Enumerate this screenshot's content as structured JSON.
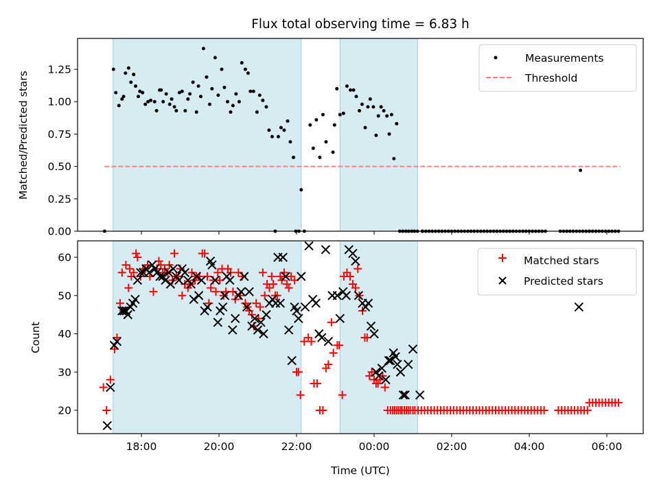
{
  "chart_data": [
    {
      "type": "scatter",
      "title": "Flux total observing time = 6.83 h",
      "xlabel": "",
      "ylabel": "Matched/Predicted stars",
      "ylim": [
        0.0,
        1.49
      ],
      "yticks": [
        "0.00",
        "0.25",
        "0.50",
        "0.75",
        "1.00",
        "1.25"
      ],
      "ytick_values": [
        0.0,
        0.25,
        0.5,
        0.75,
        1.0,
        1.25
      ],
      "x_unit": "hours relative to 18:00 UTC",
      "xlim": [
        -1.65,
        6.95
      ],
      "xticks": [
        0,
        2,
        4,
        6,
        8,
        10,
        12
      ],
      "shaded_spans": [
        [
          -0.73,
          4.12
        ],
        [
          5.12,
          7.12
        ]
      ],
      "shade_color": "#add8e6",
      "legend": {
        "position": "top-right",
        "entries": [
          "Measurements",
          "Threshold"
        ]
      },
      "threshold": {
        "name": "Threshold",
        "value": 0.5,
        "x_range": [
          -0.95,
          12.35
        ],
        "color": "#ff7f7f",
        "style": "dashed"
      },
      "series": [
        {
          "name": "Measurements",
          "marker": "dot",
          "color": "#000000",
          "x": [
            -0.95,
            -0.72,
            -0.66,
            -0.58,
            -0.5,
            -0.46,
            -0.41,
            -0.33,
            -0.27,
            -0.2,
            -0.15,
            -0.08,
            -0.04,
            0.03,
            0.1,
            0.17,
            0.24,
            0.34,
            0.39,
            0.47,
            0.51,
            0.56,
            0.64,
            0.73,
            0.78,
            0.85,
            0.9,
            0.98,
            1.05,
            1.13,
            1.2,
            1.25,
            1.33,
            1.42,
            1.47,
            1.53,
            1.6,
            1.68,
            1.76,
            1.82,
            1.9,
            1.98,
            2.07,
            2.14,
            2.22,
            2.3,
            2.36,
            2.44,
            2.52,
            2.59,
            2.68,
            2.75,
            2.81,
            2.89,
            2.98,
            3.05,
            3.13,
            3.22,
            3.29,
            3.37,
            3.45,
            3.53,
            3.6,
            3.68,
            3.77,
            3.84,
            3.92,
            3.98,
            4.06,
            4.12,
            4.2,
            4.35,
            4.43,
            4.51,
            4.6,
            4.68,
            4.76,
            4.94,
            4.98,
            5.04,
            5.12,
            5.21,
            5.3,
            5.39,
            5.47,
            5.54,
            5.62,
            5.69,
            5.77,
            5.84,
            5.9,
            5.98,
            6.05,
            6.11,
            6.18,
            6.25,
            6.33,
            6.39,
            6.45,
            6.51,
            6.58,
            6.66,
            6.74,
            6.82,
            6.89,
            6.97,
            7.04,
            7.12,
            7.24
          ],
          "y": [
            0.0,
            1.25,
            1.07,
            0.97,
            1.02,
            1.04,
            1.22,
            1.26,
            1.15,
            1.21,
            1.12,
            1.04,
            1.08,
            1.07,
            0.98,
            1.0,
            1.01,
            1.0,
            0.93,
            1.09,
            1.09,
            1.0,
            1.06,
            0.98,
            1.02,
            0.96,
            0.93,
            1.07,
            1.08,
            0.93,
            1.02,
            1.06,
            1.15,
            0.92,
            1.12,
            1.04,
            1.41,
            1.19,
            0.98,
            1.1,
            1.34,
            1.05,
            1.25,
            1.11,
            1.0,
            0.92,
            0.97,
            1.06,
            1.0,
            1.3,
            1.25,
            1.22,
            1.08,
            1.08,
            0.92,
            1.05,
            1.01,
            0.96,
            0.78,
            0.73,
            0.0,
            0.73,
            0.8,
            0.78,
            0.85,
            0.69,
            0.57,
            0.0,
            0.0,
            0.32,
            0.0,
            0.82,
            0.64,
            0.86,
            0.57,
            0.9,
            0.69,
            0.61,
            0.82,
            1.1,
            0.9,
            0.91,
            1.12,
            1.09,
            1.09,
            1.04,
            0.93,
            0.98,
            0.8,
            0.96,
            1.02,
            0.96,
            0.74,
            0.89,
            0.96,
            0.93,
            0.89,
            0.75,
            0.9,
            0.56,
            0.83,
            0.0,
            0.0,
            0.0,
            0.0,
            0.0,
            0.0,
            0.0,
            0.0
          ]
        }
      ],
      "zero_run_segments_x": [
        [
          7.25,
          10.45
        ],
        [
          10.8,
          11.55
        ],
        [
          11.55,
          12.35
        ]
      ],
      "isolated_points": [
        {
          "x": 11.32,
          "y": 0.47
        }
      ]
    },
    {
      "type": "scatter",
      "title": "",
      "xlabel": "Time (UTC)",
      "ylabel": "Count",
      "ylim": [
        13.5,
        64.3
      ],
      "yticks": [
        "20",
        "30",
        "40",
        "50",
        "60"
      ],
      "ytick_values": [
        20,
        30,
        40,
        50,
        60
      ],
      "x_unit": "hours relative to 18:00 UTC",
      "xlim": [
        -1.65,
        6.95
      ],
      "xticks": [
        0,
        2,
        4,
        6,
        8,
        10,
        12
      ],
      "xtick_labels": [
        "18:00",
        "20:00",
        "22:00",
        "00:00",
        "02:00",
        "04:00",
        "06:00"
      ],
      "shaded_spans": [
        [
          -0.73,
          4.12
        ],
        [
          5.12,
          7.12
        ]
      ],
      "shade_color": "#add8e6",
      "legend": {
        "position": "top-right",
        "entries": [
          "Matched stars",
          "Predicted stars"
        ]
      },
      "series": [
        {
          "name": "Matched stars",
          "marker": "plus",
          "color": "#ff0000",
          "x": [
            -0.98,
            -0.9,
            -0.8,
            -0.69,
            -0.63,
            -0.55,
            -0.5,
            -0.46,
            -0.4,
            -0.33,
            -0.3,
            -0.26,
            -0.2,
            -0.14,
            -0.1,
            -0.02,
            0.04,
            0.1,
            0.16,
            0.22,
            0.31,
            0.4,
            0.45,
            0.5,
            0.55,
            0.6,
            0.68,
            0.72,
            0.8,
            0.85,
            0.9,
            0.95,
            1.0,
            1.05,
            1.12,
            1.2,
            1.26,
            1.3,
            1.38,
            1.42,
            1.5,
            1.57,
            1.63,
            1.7,
            1.74,
            1.79,
            1.85,
            1.92,
            1.97,
            2.02,
            2.08,
            2.12,
            2.18,
            2.23,
            2.3,
            2.36,
            2.42,
            2.5,
            2.55,
            2.6,
            2.68,
            2.73,
            2.78,
            2.85,
            2.9,
            2.96,
            3.02,
            3.06,
            3.13,
            3.18,
            3.24,
            3.3,
            3.36,
            3.4,
            3.45,
            3.5,
            3.58,
            3.62,
            3.68,
            3.75,
            3.8,
            3.86,
            3.95,
            4.0,
            4.05,
            4.1,
            4.2,
            4.3,
            4.38,
            4.45,
            4.53,
            4.6,
            4.68,
            4.76,
            4.82,
            4.9,
            4.95,
            5.05,
            5.1,
            5.18,
            5.22,
            5.3,
            5.38,
            5.45,
            5.52,
            5.58,
            5.62,
            5.7,
            5.76,
            5.82,
            5.88,
            5.94,
            6.0,
            6.05,
            6.1,
            6.15,
            6.22,
            6.28,
            6.35,
            6.42,
            6.48,
            6.53,
            6.58,
            6.63,
            6.68,
            6.72,
            6.78,
            6.83,
            6.88,
            6.93,
            7.0
          ],
          "y": [
            26,
            20,
            28,
            36,
            39,
            48,
            56,
            46,
            58,
            52,
            57,
            55,
            56,
            61,
            60,
            55,
            57,
            57,
            58,
            55,
            51,
            57,
            59,
            58,
            56,
            57,
            56,
            58,
            54,
            61,
            55,
            55,
            57,
            50,
            53,
            52,
            53,
            56,
            54,
            55,
            55,
            61,
            61,
            55,
            48,
            52,
            54,
            51,
            56,
            54,
            57,
            50,
            51,
            57,
            56,
            51,
            49,
            56,
            50,
            55,
            48,
            47,
            46,
            45,
            42,
            48,
            44,
            47,
            56,
            50,
            53,
            52,
            55,
            53,
            50,
            50,
            55,
            54,
            56,
            53,
            52,
            55,
            54,
            30,
            30,
            24,
            38,
            39,
            38,
            27,
            27,
            20,
            20,
            31,
            32,
            43,
            35,
            37,
            37,
            24,
            55,
            56,
            55,
            53,
            52,
            57,
            50,
            46,
            39,
            39,
            29,
            30,
            28,
            27,
            27,
            28,
            29,
            26,
            20,
            20,
            20,
            20,
            20,
            20,
            20,
            20,
            20,
            20,
            20,
            20,
            20
          ]
        },
        {
          "name": "Predicted stars",
          "marker": "x",
          "color": "#000000",
          "x": [
            -0.88,
            -0.8,
            -0.7,
            -0.63,
            -0.5,
            -0.45,
            -0.4,
            -0.35,
            -0.28,
            -0.22,
            -0.16,
            -0.1,
            -0.02,
            0.05,
            0.12,
            0.2,
            0.28,
            0.35,
            0.4,
            0.48,
            0.55,
            0.62,
            0.7,
            0.75,
            0.82,
            0.9,
            0.97,
            1.05,
            1.12,
            1.2,
            1.28,
            1.35,
            1.42,
            1.48,
            1.55,
            1.63,
            1.7,
            1.78,
            1.82,
            1.9,
            1.97,
            2.03,
            2.1,
            2.15,
            2.2,
            2.28,
            2.35,
            2.42,
            2.5,
            2.57,
            2.65,
            2.72,
            2.78,
            2.85,
            2.92,
            3.0,
            3.08,
            3.15,
            3.22,
            3.3,
            3.38,
            3.46,
            3.52,
            3.58,
            3.65,
            3.72,
            3.8,
            3.88,
            3.95,
            4.0,
            4.05,
            4.12,
            4.22,
            4.32,
            4.42,
            4.5,
            4.58,
            4.65,
            4.75,
            4.82,
            4.92,
            5.05,
            5.12,
            5.2,
            5.28,
            5.35,
            5.45,
            5.52,
            5.6,
            5.7,
            5.78,
            5.85,
            5.92,
            6.0,
            6.05,
            6.12,
            6.2,
            6.3,
            6.38,
            6.42,
            6.5,
            6.55,
            6.6,
            6.68,
            6.75,
            6.8,
            6.88,
            7.0,
            7.18,
            11.28
          ],
          "y": [
            16,
            26,
            37,
            38,
            46,
            46,
            46,
            45,
            47,
            48,
            49,
            54,
            56,
            56,
            57,
            56,
            58,
            57,
            56,
            55,
            55,
            54,
            56,
            53,
            57,
            55,
            54,
            57,
            56,
            54,
            53,
            49,
            55,
            50,
            54,
            46,
            47,
            59,
            58,
            54,
            43,
            46,
            47,
            50,
            55,
            54,
            41,
            44,
            50,
            51,
            55,
            47,
            51,
            42,
            44,
            41,
            43,
            40,
            45,
            48,
            49,
            48,
            60,
            48,
            60,
            55,
            41,
            33,
            47,
            46,
            44,
            55,
            47,
            63,
            49,
            48,
            40,
            39,
            62,
            38,
            50,
            50,
            44,
            51,
            50,
            62,
            61,
            59,
            50,
            48,
            47,
            48,
            42,
            40,
            30,
            29,
            31,
            28,
            33,
            33,
            35,
            34,
            32,
            30,
            24,
            24,
            32,
            36,
            24,
            47
          ]
        }
      ]
    }
  ],
  "figure": {
    "title": "Flux total observing time = 6.83 h",
    "xlabel": "Time (UTC)",
    "top_ylabel": "Matched/Predicted stars",
    "bottom_ylabel": "Count"
  }
}
